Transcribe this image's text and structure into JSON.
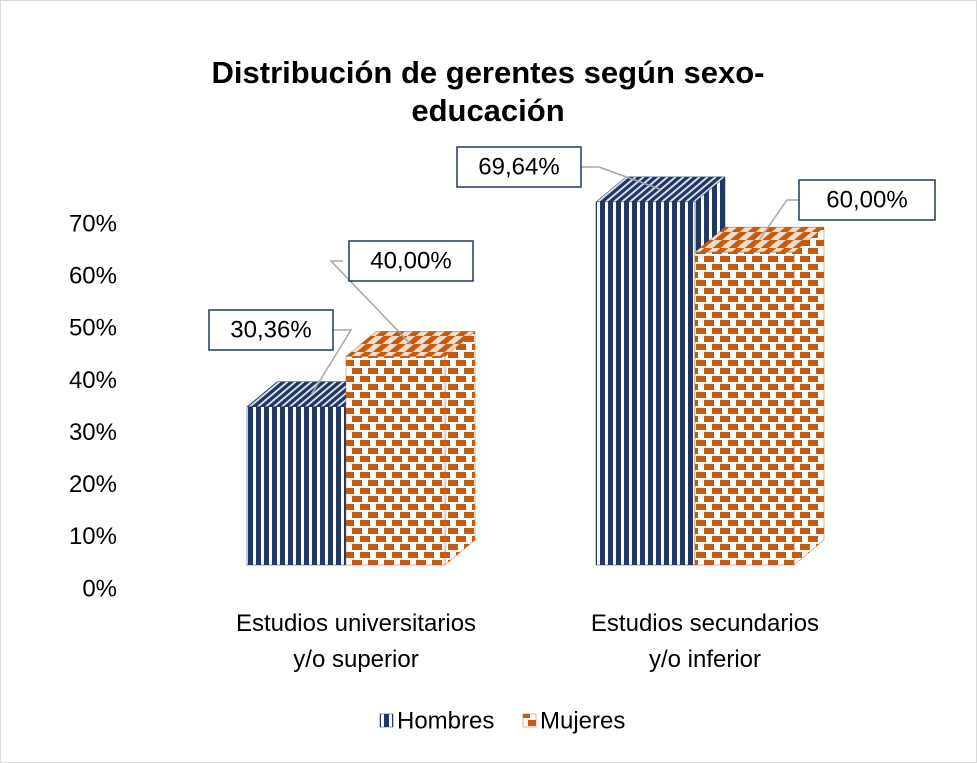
{
  "chart_data": {
    "type": "bar3d",
    "title": "Distribución de gerentes según sexo-educación",
    "categories": [
      "Estudios universitarios y/o superior",
      "Estudios secundarios y/o inferior"
    ],
    "series": [
      {
        "name": "Hombres",
        "color": "#1f3864",
        "values": [
          30.36,
          69.64
        ],
        "value_labels": [
          "30,36%",
          "69,64%"
        ]
      },
      {
        "name": "Mujeres",
        "color": "#c55a11",
        "values": [
          40,
          60
        ],
        "value_labels": [
          "40,00%",
          "60,00%"
        ]
      }
    ],
    "ylim": [
      0,
      70
    ],
    "yticks": [
      {
        "value": 0,
        "label": "0%"
      },
      {
        "value": 10,
        "label": "10%"
      },
      {
        "value": 20,
        "label": "20%"
      },
      {
        "value": 30,
        "label": "30%"
      },
      {
        "value": 40,
        "label": "40%"
      },
      {
        "value": 50,
        "label": "50%"
      },
      {
        "value": 60,
        "label": "60%"
      },
      {
        "value": 70,
        "label": "70%"
      }
    ],
    "legend": "bottom"
  }
}
